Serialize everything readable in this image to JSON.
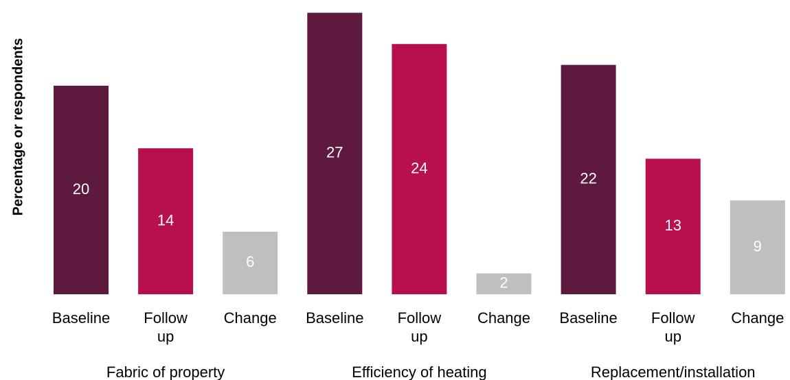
{
  "chart_data": {
    "type": "bar",
    "ylabel": "Percentage or respondents",
    "ylim": [
      0,
      27
    ],
    "grid": false,
    "legend": "none",
    "groups": [
      {
        "name": "Fabric of property",
        "bars": [
          {
            "category": [
              "Baseline"
            ],
            "value": 20
          },
          {
            "category": [
              "Follow",
              "up"
            ],
            "value": 14
          },
          {
            "category": [
              "Change"
            ],
            "value": 6
          }
        ]
      },
      {
        "name": "Efficiency of heating",
        "bars": [
          {
            "category": [
              "Baseline"
            ],
            "value": 27
          },
          {
            "category": [
              "Follow",
              "up"
            ],
            "value": 24
          },
          {
            "category": [
              "Change"
            ],
            "value": 2
          }
        ]
      },
      {
        "name": "Replacement/installation",
        "bars": [
          {
            "category": [
              "Baseline"
            ],
            "value": 22
          },
          {
            "category": [
              "Follow",
              "up"
            ],
            "value": 13
          },
          {
            "category": [
              "Change"
            ],
            "value": 9
          }
        ]
      }
    ],
    "colors": {
      "Baseline": "#5e1a3e",
      "Follow up": "#b80f4d",
      "Change": "#bfbfbf",
      "label": "#ffffff",
      "text": "#000000"
    }
  }
}
